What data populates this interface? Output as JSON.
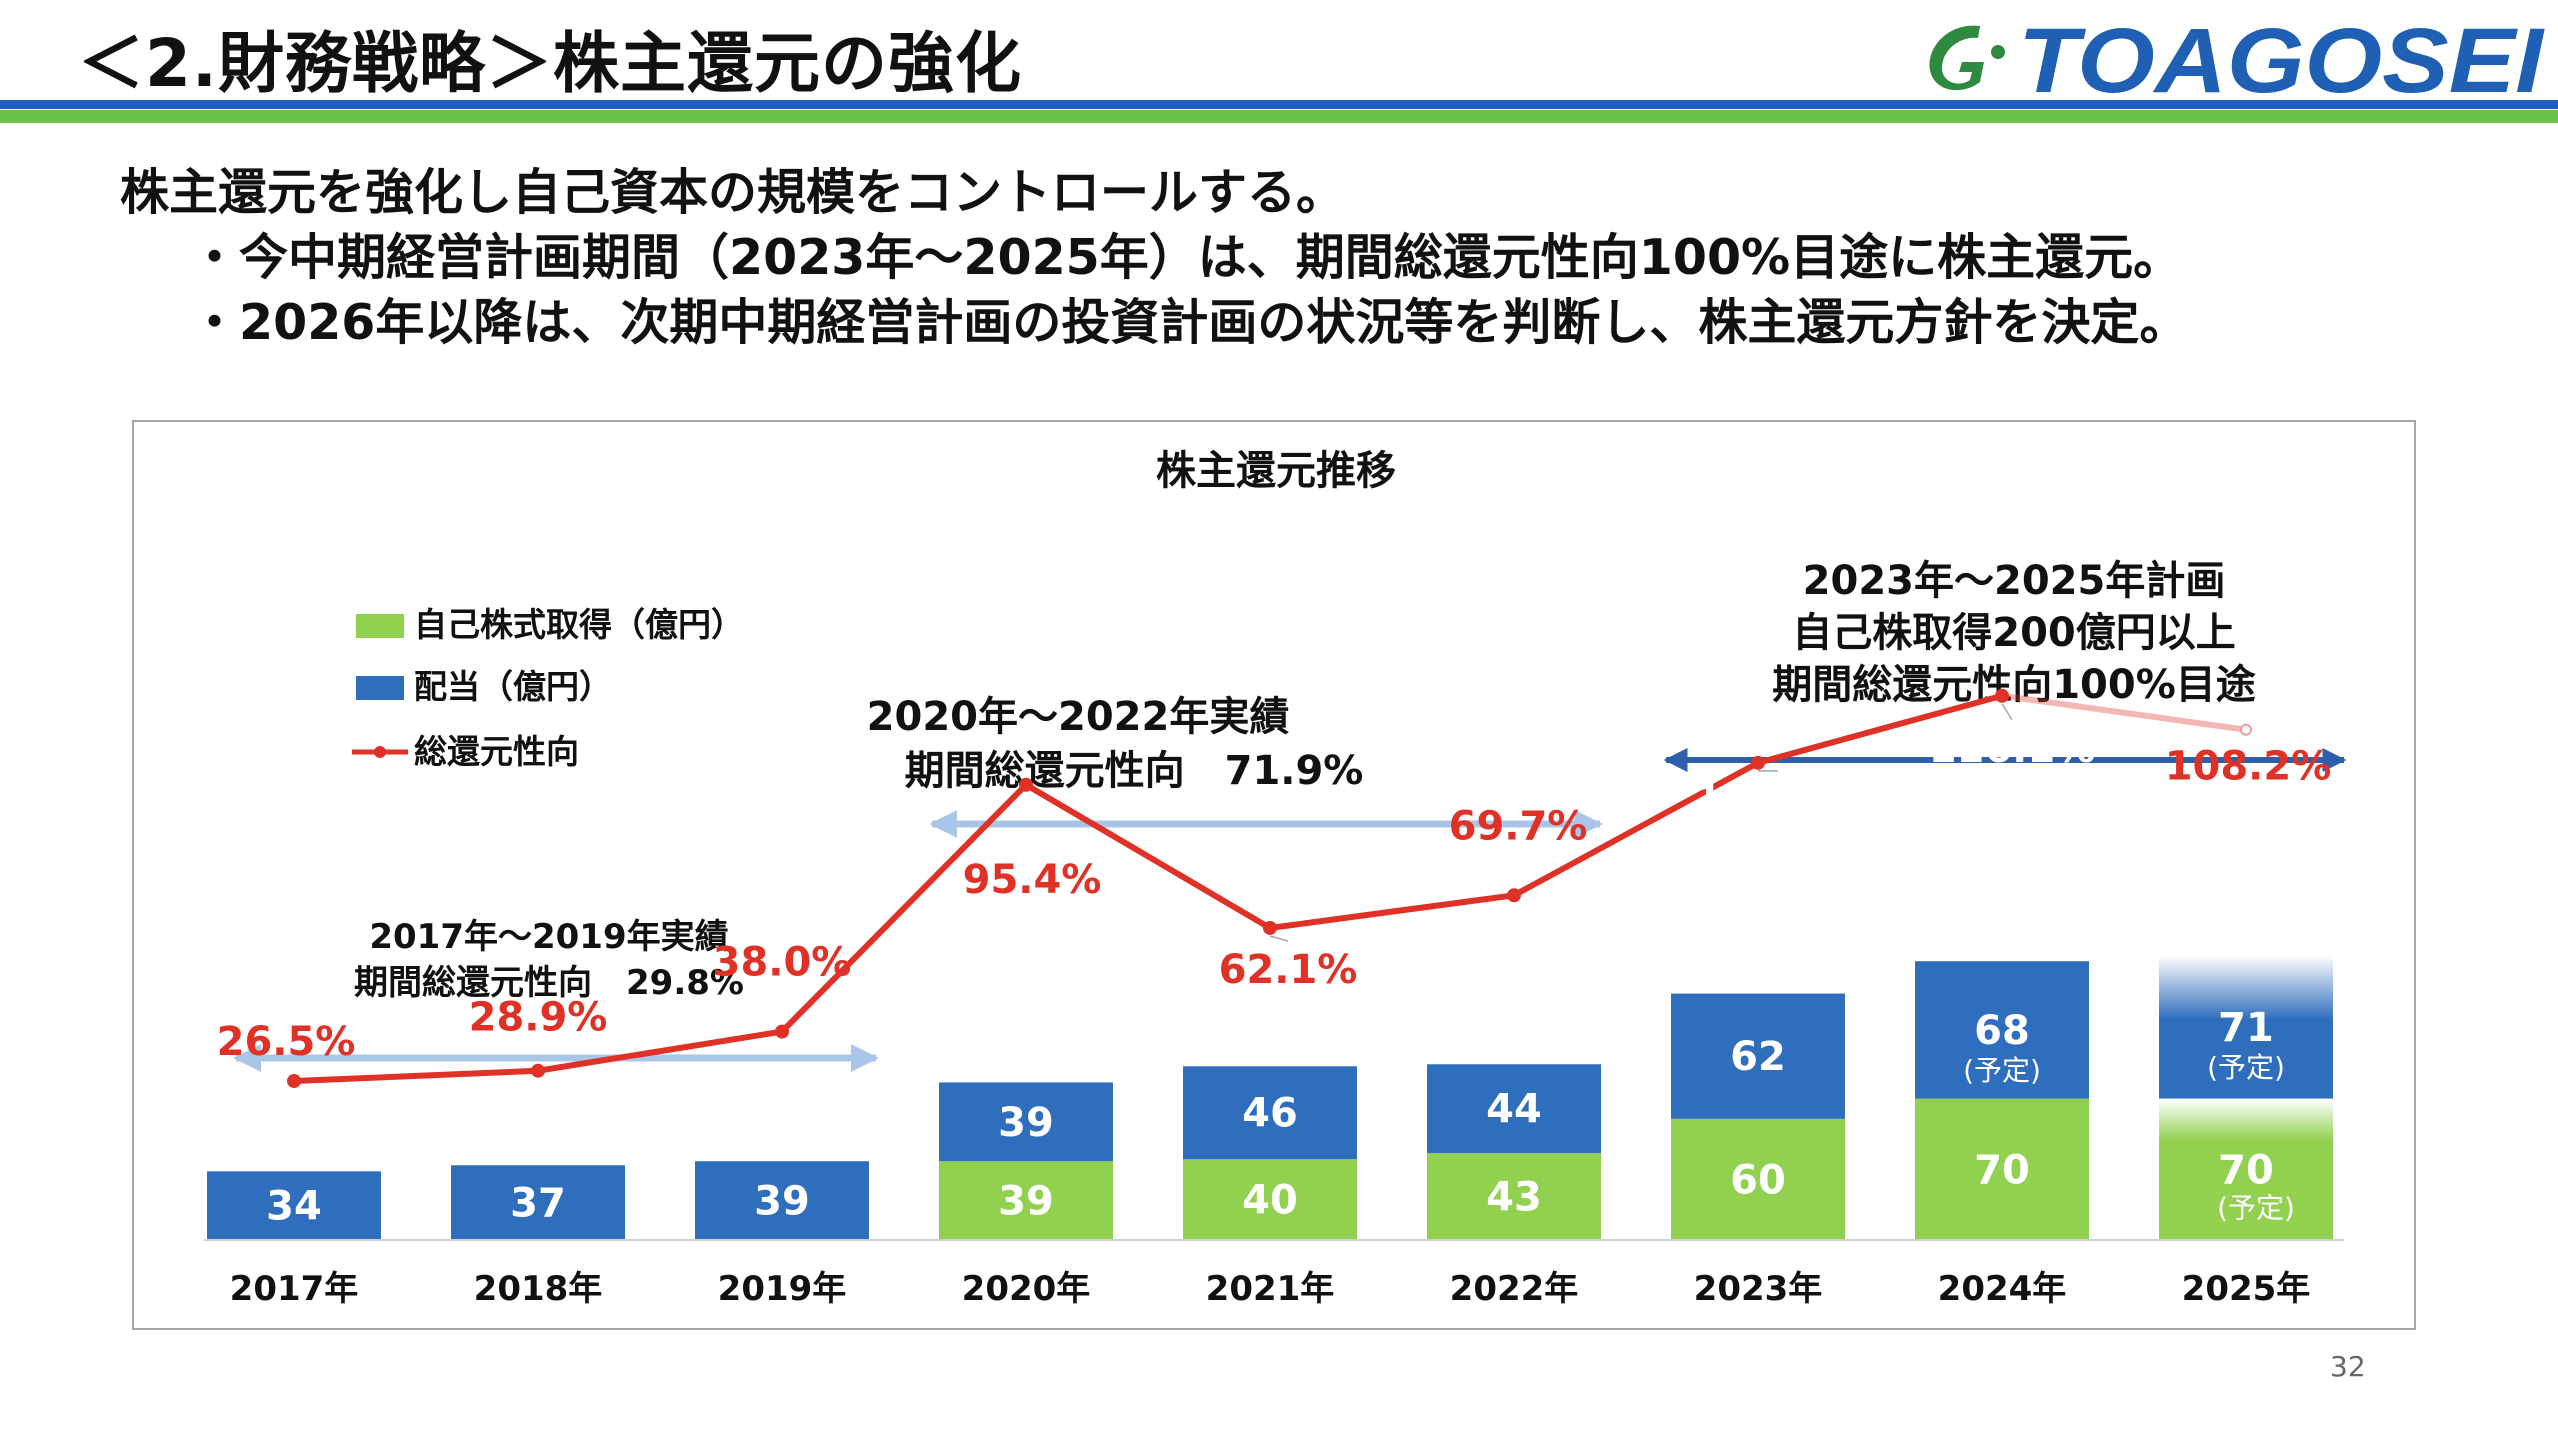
{
  "slide": {
    "title": "＜2.財務戦略＞株主還元の強化",
    "logo_text": "TOAGOSEI",
    "page_number": "32"
  },
  "bullets": {
    "line1": "株主還元を強化し自己資本の規模をコントロールする。",
    "line2": "・今中期経営計画期間（2023年～2025年）は、期間総還元性向100%目途に株主還元。",
    "line3": "・2026年以降は、次期中期経営計画の投資計画の状況等を判断し、株主還元方針を決定。"
  },
  "colors": {
    "buyback": "#92d050",
    "dividend": "#2e6ebd",
    "ratio_line": "#e03127",
    "header_blue": "#1f5fbf",
    "header_green": "#6cc04a",
    "arrow_light": "#a9c5e8",
    "arrow_dark": "#2e5fa8"
  },
  "chart_data": {
    "type": "bar",
    "stacked": true,
    "title": "株主還元推移",
    "categories": [
      "2017年",
      "2018年",
      "2019年",
      "2020年",
      "2021年",
      "2022年",
      "2023年",
      "2024年",
      "2025年"
    ],
    "series": [
      {
        "name": "自己株式取得（億円）",
        "values": [
          0,
          0,
          0,
          39,
          40,
          43,
          60,
          70,
          70
        ],
        "labels": [
          "",
          "",
          "",
          "39",
          "40",
          "43",
          "60",
          "70",
          "70"
        ]
      },
      {
        "name": "配当（億円）",
        "values": [
          34,
          37,
          39,
          39,
          46,
          44,
          62,
          68,
          71
        ],
        "labels": [
          "34",
          "37",
          "39",
          "39",
          "46",
          "44",
          "62",
          "68",
          "71"
        ]
      },
      {
        "name": "総還元性向",
        "type": "line",
        "values": [
          26.5,
          28.9,
          38.0,
          95.4,
          62.1,
          69.7,
          100.5,
          116.1,
          108.2
        ],
        "labels": [
          "26.5%",
          "28.9%",
          "38.0%",
          "95.4%",
          "62.1%",
          "69.7%",
          "100.5%",
          "116.1%",
          "108.2%"
        ]
      }
    ],
    "planned_note": "(予定)",
    "legend_position": "top-left",
    "annotations": {
      "period1": {
        "line1": "2017年～2019年実績",
        "line2": "期間総還元性向　29.8%"
      },
      "period2": {
        "line1": "2020年～2022年実績",
        "line2": "期間総還元性向　71.9%"
      },
      "period3": {
        "line1": "2023年～2025年計画",
        "line2": "自己株取得200億円以上",
        "line3": "期間総還元性向100%目途"
      }
    }
  }
}
